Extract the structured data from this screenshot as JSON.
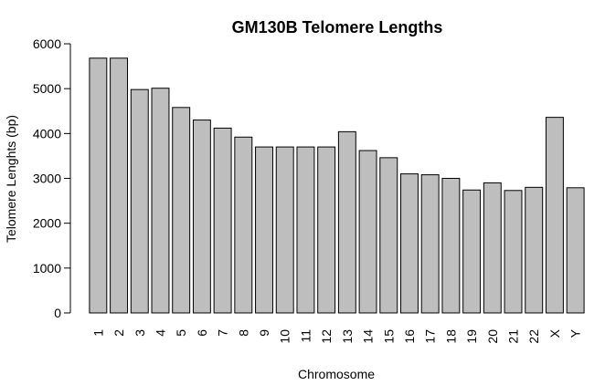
{
  "chart_data": {
    "type": "bar",
    "title": "GM130B Telomere Lengths",
    "xlabel": "Chromosome",
    "ylabel": "Telomere Lenghts (bp)",
    "categories": [
      "1",
      "2",
      "3",
      "4",
      "5",
      "6",
      "7",
      "8",
      "9",
      "10",
      "11",
      "12",
      "13",
      "14",
      "15",
      "16",
      "17",
      "18",
      "19",
      "20",
      "21",
      "22",
      "X",
      "Y"
    ],
    "values": [
      5680,
      5680,
      4980,
      5010,
      4580,
      4300,
      4120,
      3920,
      3700,
      3700,
      3700,
      3700,
      4040,
      3620,
      3460,
      3100,
      3080,
      3000,
      2740,
      2900,
      2730,
      2800,
      4360,
      2790
    ],
    "yticks": [
      0,
      1000,
      2000,
      3000,
      4000,
      5000,
      6000
    ],
    "ylim": [
      0,
      6000
    ],
    "grid": false,
    "bar_color": "#bebebe"
  }
}
